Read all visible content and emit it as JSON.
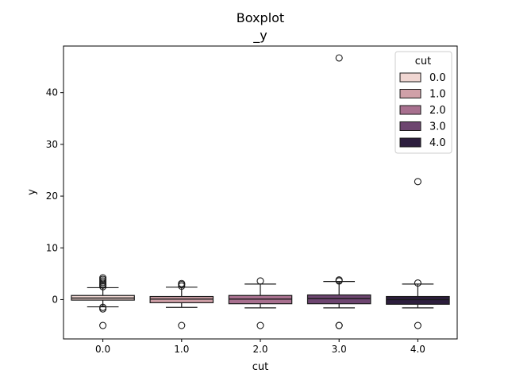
{
  "chart_data": {
    "type": "boxplot",
    "title": "Boxplot\n_y",
    "title_lines": [
      "Boxplot",
      "_y"
    ],
    "xlabel": "cut",
    "ylabel": "y",
    "categories": [
      "0.0",
      "1.0",
      "2.0",
      "3.0",
      "4.0"
    ],
    "ylim": [
      -7.6,
      49.0
    ],
    "yticks": [
      0,
      10,
      20,
      30,
      40
    ],
    "ytick_labels": [
      "0",
      "10",
      "20",
      "30",
      "40"
    ],
    "grid": false,
    "legend": {
      "title": "cut",
      "placement": "top-right",
      "entries": [
        "0.0",
        "1.0",
        "2.0",
        "3.0",
        "4.0"
      ]
    },
    "series": [
      {
        "name": "0.0",
        "color": "#f0d6d2",
        "q1": -0.1,
        "median": 0.3,
        "q3": 0.8,
        "whisker_low": -1.4,
        "whisker_high": 2.3,
        "outliers": [
          2.5,
          2.8,
          3.0,
          3.3,
          3.6,
          3.9,
          4.2,
          -1.5,
          -1.8,
          -5.0
        ]
      },
      {
        "name": "1.0",
        "color": "#d0a0a8",
        "q1": -0.6,
        "median": 0.1,
        "q3": 0.6,
        "whisker_low": -1.5,
        "whisker_high": 2.4,
        "outliers": [
          2.6,
          2.9,
          3.1,
          -5.0
        ]
      },
      {
        "name": "2.0",
        "color": "#a8708f",
        "q1": -0.8,
        "median": 0.1,
        "q3": 0.8,
        "whisker_low": -1.6,
        "whisker_high": 3.0,
        "outliers": [
          3.6,
          -5.0
        ]
      },
      {
        "name": "3.0",
        "color": "#6d4570",
        "q1": -0.8,
        "median": 0.2,
        "q3": 0.9,
        "whisker_low": -1.6,
        "whisker_high": 3.5,
        "outliers": [
          3.6,
          3.8,
          46.7,
          -5.0,
          -5.0
        ]
      },
      {
        "name": "4.0",
        "color": "#2d1e3e",
        "q1": -0.9,
        "median": 0.0,
        "q3": 0.6,
        "whisker_low": -1.6,
        "whisker_high": 3.0,
        "outliers": [
          3.2,
          22.8,
          -5.0
        ]
      }
    ]
  }
}
